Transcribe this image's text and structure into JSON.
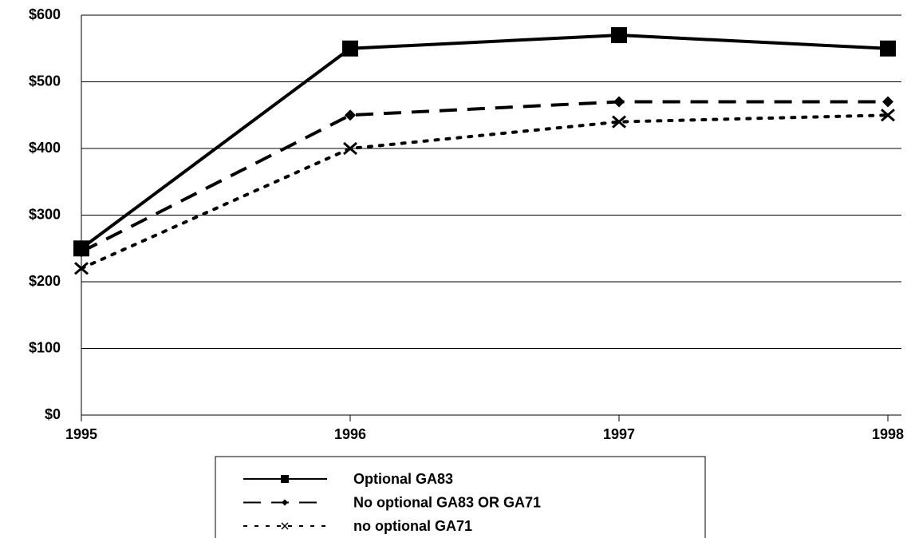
{
  "chart_data": {
    "type": "line",
    "x": [
      1995,
      1996,
      1997,
      1998
    ],
    "xlim": [
      1995,
      1998
    ],
    "xticks": [
      1995,
      1996,
      1997,
      1998
    ],
    "ylim": [
      0,
      600
    ],
    "yticks": [
      {
        "value": 0,
        "label": "$0"
      },
      {
        "value": 100,
        "label": "$100"
      },
      {
        "value": 200,
        "label": "$200"
      },
      {
        "value": 300,
        "label": "$300"
      },
      {
        "value": 400,
        "label": "$400"
      },
      {
        "value": 500,
        "label": "$500"
      },
      {
        "value": 600,
        "label": "$600"
      }
    ],
    "grid": true,
    "legend": "bottom",
    "series": [
      {
        "name": "Optional GA83",
        "color": "#000000",
        "line_style": "solid",
        "marker": "square",
        "values": [
          250,
          550,
          570,
          550
        ]
      },
      {
        "name": "No optional GA83 OR GA71",
        "color": "#000000",
        "line_style": "dashed",
        "marker": "diamond",
        "values": [
          245,
          450,
          470,
          470
        ]
      },
      {
        "name": "no optional GA71",
        "color": "#000000",
        "line_style": "dotted",
        "marker": "x",
        "values": [
          220,
          400,
          440,
          450
        ]
      }
    ]
  }
}
